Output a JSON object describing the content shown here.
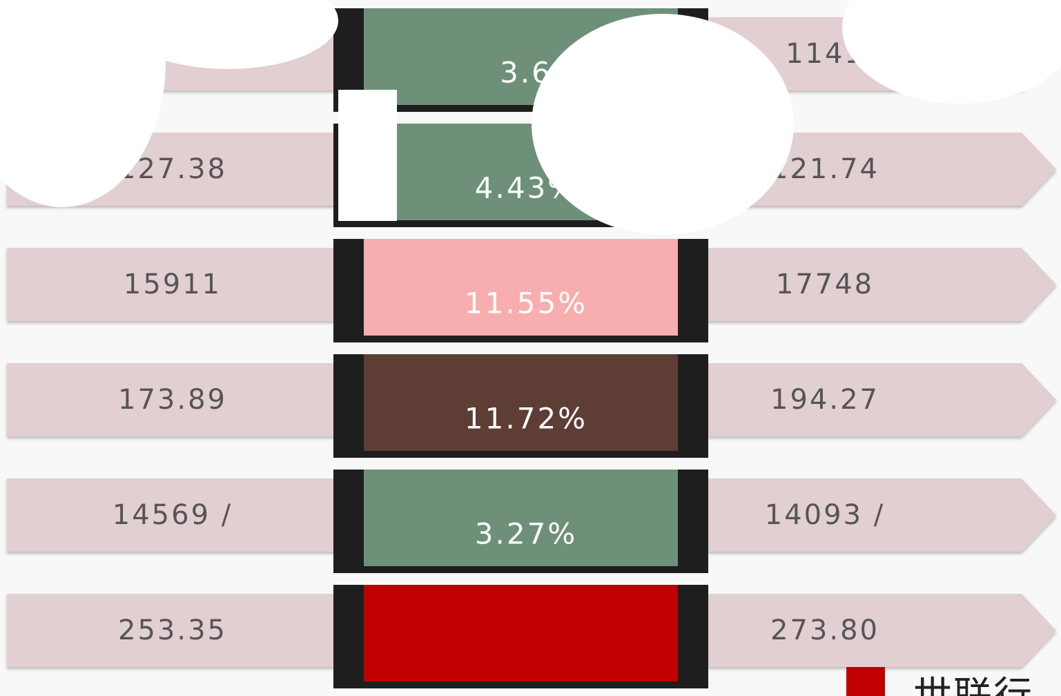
{
  "rows": [
    {
      "left": null,
      "center": "3.6",
      "right": "1141",
      "color": "#6e9079"
    },
    {
      "left": "127.38",
      "center": "4.43%",
      "right": "121.74",
      "color": "#6e9079"
    },
    {
      "left": "15911",
      "center": "11.55%",
      "right": "17748",
      "color": "#f8aeae"
    },
    {
      "left": "173.89",
      "center": "11.72%",
      "right": "194.27",
      "color": "#5e3d35"
    },
    {
      "left": "14569 /",
      "center": "3.27%",
      "right": "14093 /",
      "color": "#6e9079"
    },
    {
      "left": "253.35",
      "center": null,
      "right": "273.80",
      "color": "#c00000"
    }
  ],
  "brand": "世联行"
}
